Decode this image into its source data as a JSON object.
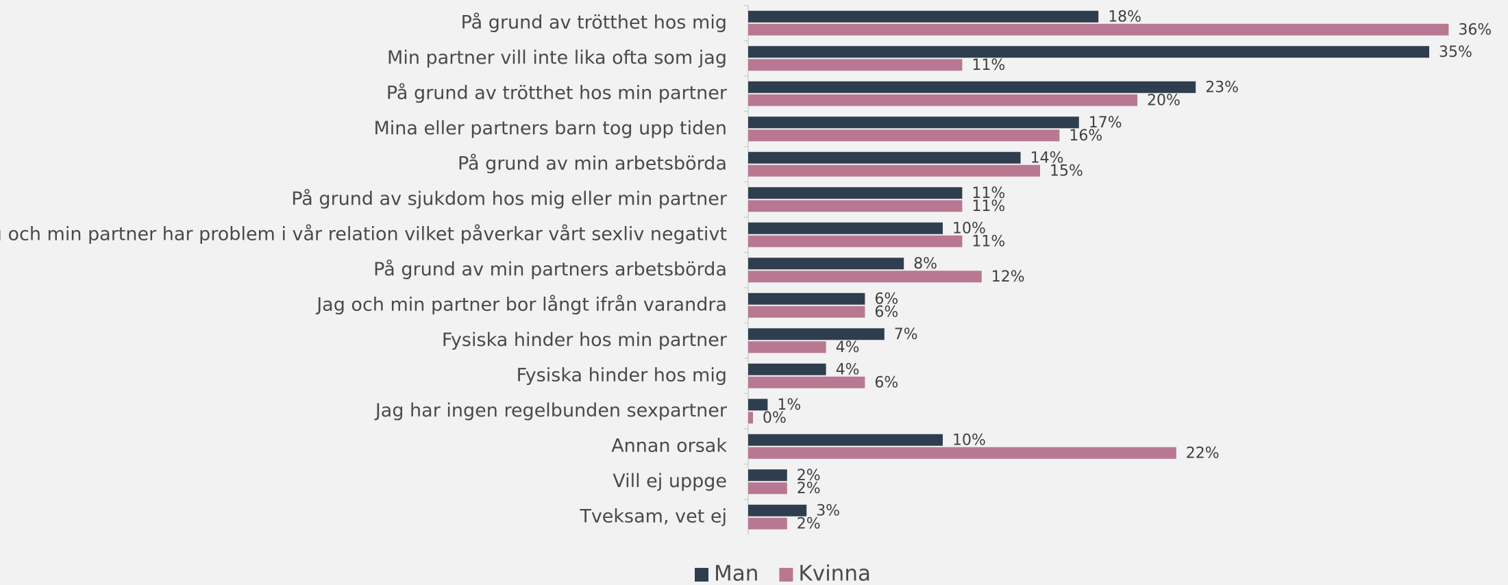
{
  "chart_data": {
    "type": "bar",
    "orientation": "horizontal",
    "categories": [
      "På grund av trötthet hos mig",
      "Min partner vill inte lika ofta som jag",
      "På grund av trötthet hos min partner",
      "Mina eller partners barn tog upp tiden",
      "På grund av min arbetsbörda",
      "På grund av sjukdom hos mig eller min partner",
      "Jag och min partner har problem i vår relation vilket påverkar vårt sexliv negativt",
      "På grund av min partners arbetsbörda",
      "Jag och min partner bor långt ifrån varandra",
      "Fysiska hinder hos min partner",
      "Fysiska hinder hos mig",
      "Jag har ingen regelbunden sexpartner",
      "Annan orsak",
      "Vill ej uppge",
      "Tveksam, vet ej"
    ],
    "series": [
      {
        "name": "Man",
        "color": "#2f3e4e",
        "values": [
          18,
          35,
          23,
          17,
          14,
          11,
          10,
          8,
          6,
          7,
          4,
          1,
          10,
          2,
          3
        ],
        "value_labels": [
          "18%",
          "35%",
          "23%",
          "17%",
          "14%",
          "11%",
          "10%",
          "8%",
          "6%",
          "7%",
          "4%",
          "1%",
          "10%",
          "2%",
          "3%"
        ]
      },
      {
        "name": "Kvinna",
        "color": "#b87891",
        "values": [
          36,
          11,
          20,
          16,
          15,
          11,
          11,
          12,
          6,
          4,
          6,
          0,
          22,
          2,
          2
        ],
        "value_labels": [
          "36%",
          "11%",
          "20%",
          "16%",
          "15%",
          "11%",
          "11%",
          "12%",
          "6%",
          "4%",
          "6%",
          "0%",
          "22%",
          "2%",
          "2%"
        ]
      }
    ],
    "legend": "bottom"
  }
}
